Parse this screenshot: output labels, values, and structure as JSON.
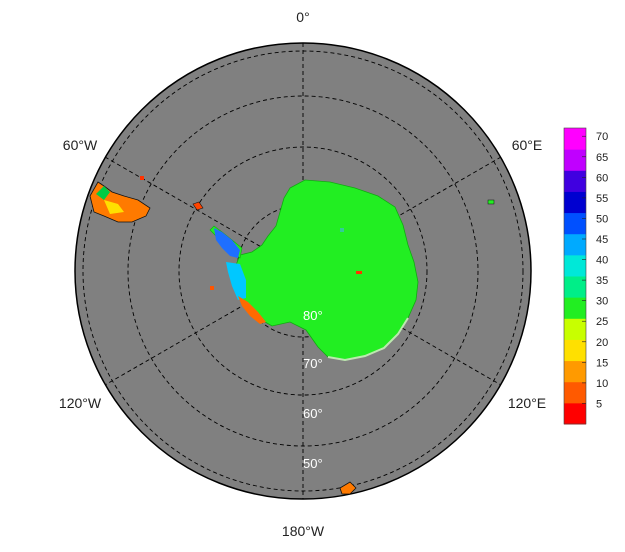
{
  "map": {
    "projection": "south-polar-stereographic",
    "background_color": "#808080",
    "longitude_labels": [
      "0°",
      "60°E",
      "120°E",
      "180°W",
      "120°W",
      "60°W"
    ],
    "latitude_labels": [
      "80°",
      "70°",
      "60°",
      "50°"
    ],
    "land_color": "#22ee22"
  },
  "colorbar": {
    "ticks": [
      "70",
      "65",
      "60",
      "55",
      "50",
      "45",
      "40",
      "35",
      "30",
      "25",
      "20",
      "15",
      "10",
      "5"
    ],
    "range": [
      0,
      72
    ],
    "colors": [
      "#ff0000",
      "#ff5a00",
      "#ff9a00",
      "#ffe000",
      "#c8ff00",
      "#22ee22",
      "#00ee88",
      "#00e8d8",
      "#00aaff",
      "#0050ff",
      "#0000d0",
      "#4000e0",
      "#c000ff",
      "#ff00ff"
    ]
  }
}
